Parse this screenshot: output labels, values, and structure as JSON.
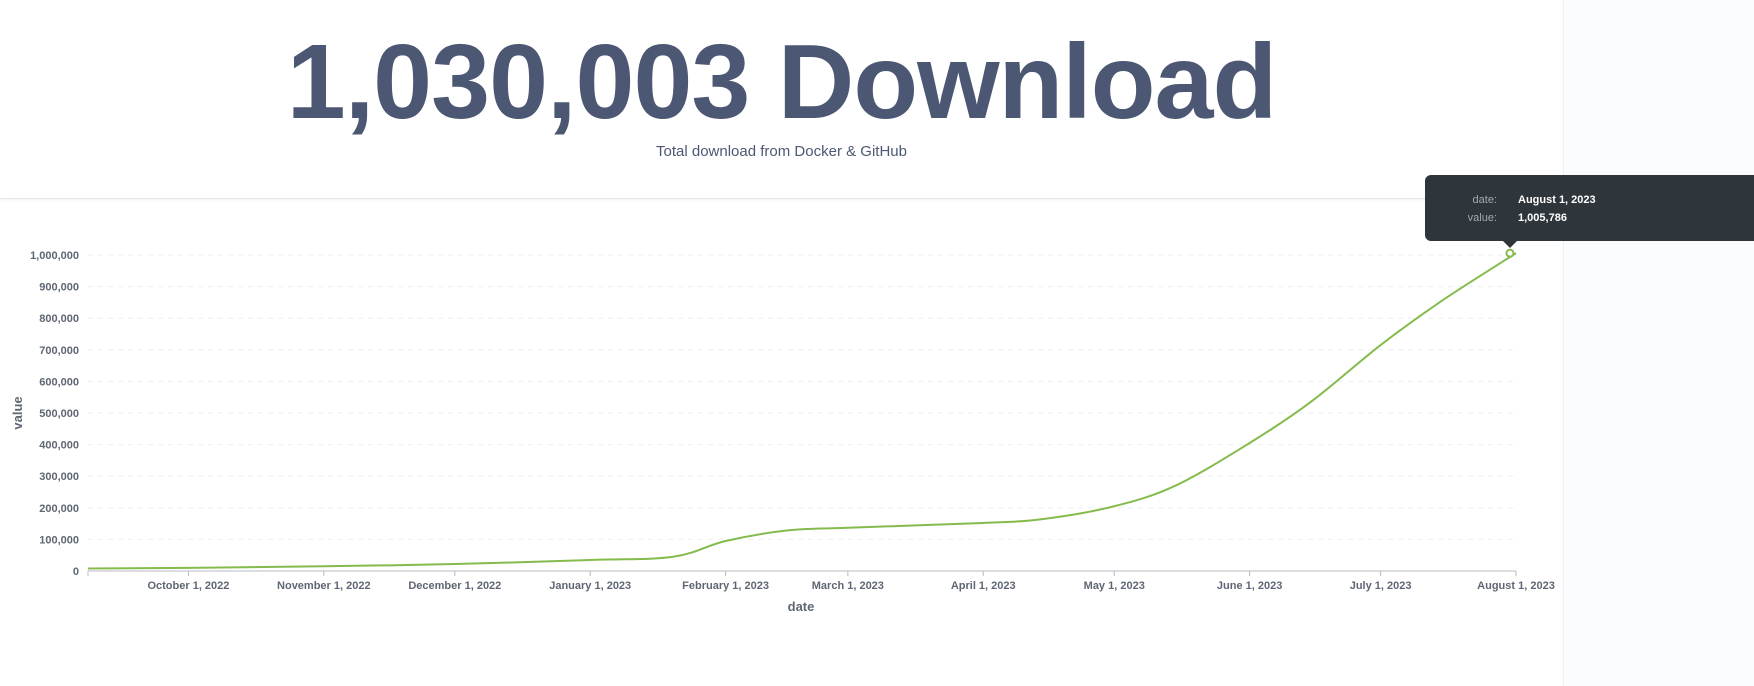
{
  "header": {
    "title": "1,030,003 Download",
    "subtitle": "Total download from Docker & GitHub"
  },
  "tooltip": {
    "date_label": "date:",
    "date_value": "August 1, 2023",
    "value_label": "value:",
    "value_value": "1,005,786"
  },
  "chart_data": {
    "type": "line",
    "xlabel": "date",
    "ylabel": "value",
    "ylim": [
      0,
      1000000
    ],
    "xlim": [
      "2022-09-08",
      "2023-08-01"
    ],
    "grid": true,
    "line_color": "#84bb4c",
    "y_ticks": [
      {
        "value": 0,
        "label": "0"
      },
      {
        "value": 100000,
        "label": "100,000"
      },
      {
        "value": 200000,
        "label": "200,000"
      },
      {
        "value": 300000,
        "label": "300,000"
      },
      {
        "value": 400000,
        "label": "400,000"
      },
      {
        "value": 500000,
        "label": "500,000"
      },
      {
        "value": 600000,
        "label": "600,000"
      },
      {
        "value": 700000,
        "label": "700,000"
      },
      {
        "value": 800000,
        "label": "800,000"
      },
      {
        "value": 900000,
        "label": "900,000"
      },
      {
        "value": 1000000,
        "label": "1,000,000"
      }
    ],
    "x_ticks": [
      {
        "date": "2022-10-01",
        "label": "October 1, 2022"
      },
      {
        "date": "2022-11-01",
        "label": "November 1, 2022"
      },
      {
        "date": "2022-12-01",
        "label": "December 1, 2022"
      },
      {
        "date": "2023-01-01",
        "label": "January 1, 2023"
      },
      {
        "date": "2023-02-01",
        "label": "February 1, 2023"
      },
      {
        "date": "2023-03-01",
        "label": "March 1, 2023"
      },
      {
        "date": "2023-04-01",
        "label": "April 1, 2023"
      },
      {
        "date": "2023-05-01",
        "label": "May 1, 2023"
      },
      {
        "date": "2023-06-01",
        "label": "June 1, 2023"
      },
      {
        "date": "2023-07-01",
        "label": "July 1, 2023"
      },
      {
        "date": "2023-08-01",
        "label": "August 1, 2023"
      }
    ],
    "points": [
      {
        "date": "2022-09-08",
        "value": 8000
      },
      {
        "date": "2022-10-01",
        "value": 10000
      },
      {
        "date": "2022-11-01",
        "value": 15000
      },
      {
        "date": "2022-12-01",
        "value": 22000
      },
      {
        "date": "2023-01-01",
        "value": 35000
      },
      {
        "date": "2023-01-20",
        "value": 45000
      },
      {
        "date": "2023-02-01",
        "value": 95000
      },
      {
        "date": "2023-02-15",
        "value": 128000
      },
      {
        "date": "2023-03-01",
        "value": 137000
      },
      {
        "date": "2023-04-01",
        "value": 152000
      },
      {
        "date": "2023-04-15",
        "value": 165000
      },
      {
        "date": "2023-05-01",
        "value": 205000
      },
      {
        "date": "2023-05-15",
        "value": 270000
      },
      {
        "date": "2023-06-01",
        "value": 405000
      },
      {
        "date": "2023-06-15",
        "value": 535000
      },
      {
        "date": "2023-07-01",
        "value": 715000
      },
      {
        "date": "2023-07-15",
        "value": 855000
      },
      {
        "date": "2023-08-01",
        "value": 1005786
      }
    ]
  }
}
